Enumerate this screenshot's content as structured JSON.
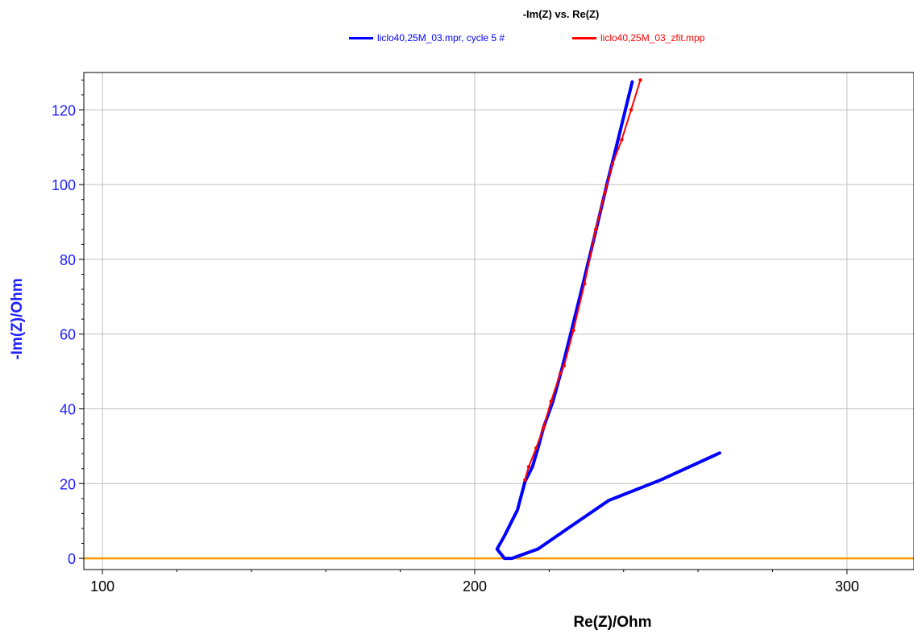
{
  "chart_data": {
    "type": "line",
    "title": "-Im(Z) vs. Re(Z)",
    "xlabel": "Re(Z)/Ohm",
    "ylabel": "-Im(Z)/Ohm",
    "xlim": [
      95,
      318
    ],
    "ylim": [
      -3,
      130
    ],
    "x_ticks": [
      100,
      200,
      300
    ],
    "y_ticks": [
      0,
      20,
      40,
      60,
      80,
      100,
      120
    ],
    "grid": true,
    "legend_position": "top",
    "series": [
      {
        "name": "liclo40,25M_03.mpr, cycle 5 #",
        "color": "#0000ff",
        "x": [
          265.8,
          250.0,
          236.0,
          225.0,
          217.0,
          210.0,
          208.0,
          206.0,
          208.0,
          211.5,
          213.5,
          215.5,
          217.0,
          218.5,
          221.0,
          223.5,
          226.0,
          229.0,
          232.5,
          235.5,
          238.0,
          242.3
        ],
        "y": [
          28.2,
          21.0,
          15.5,
          8.0,
          2.5,
          0.0,
          0.0,
          2.5,
          6.0,
          13.0,
          20.5,
          24.5,
          29.5,
          35.0,
          42.0,
          51.0,
          61.0,
          73.0,
          87.5,
          100.0,
          110.0,
          127.5
        ]
      },
      {
        "name": "liclo40,25M_03_zfit.mpp",
        "color": "#ff0000",
        "x": [
          213.5,
          214.5,
          216.5,
          218.5,
          220.5,
          223.0,
          224.0,
          226.5,
          229.5,
          232.5,
          235.0,
          237.0,
          239.5,
          242.0,
          244.5
        ],
        "y": [
          21.0,
          24.5,
          29.5,
          35.0,
          42.0,
          49.5,
          51.5,
          61.0,
          73.5,
          88.0,
          98.0,
          105.5,
          112.0,
          120.0,
          128.0
        ]
      },
      {
        "name": "",
        "color": "#ff9900",
        "x": [
          95,
          318
        ],
        "y": [
          0,
          0
        ]
      }
    ]
  }
}
